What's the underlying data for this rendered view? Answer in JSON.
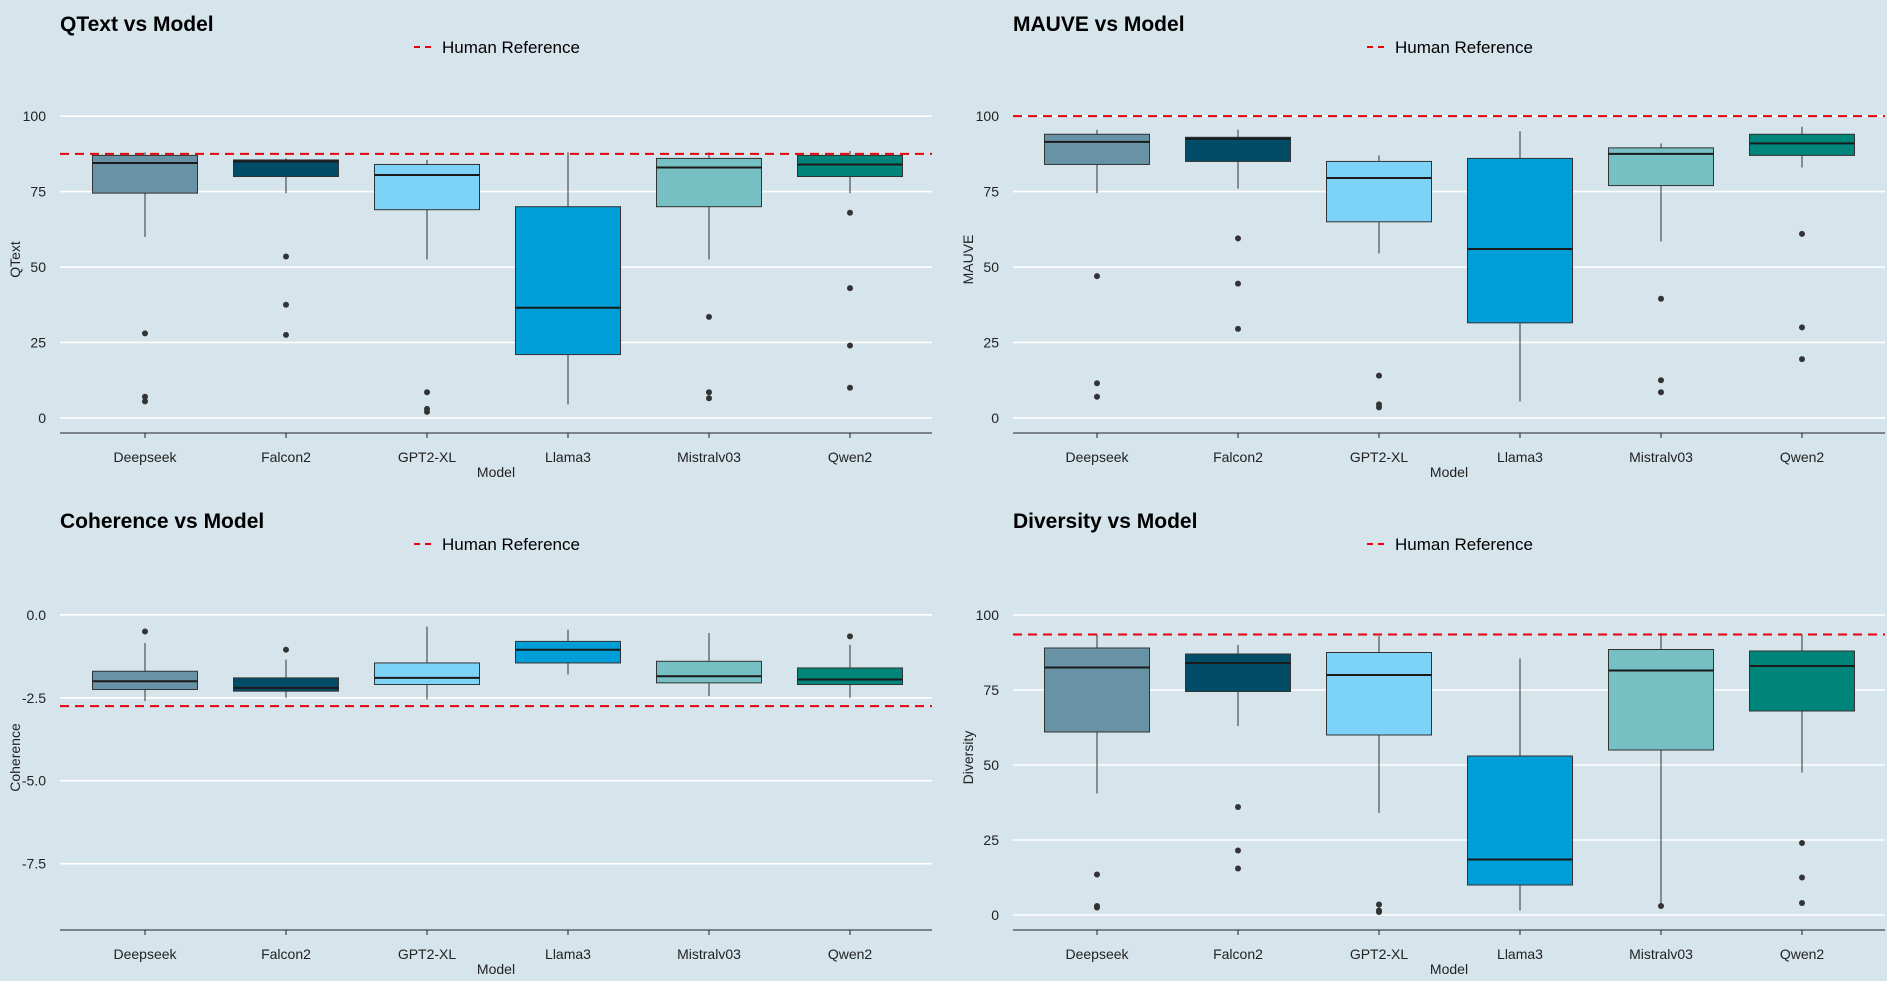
{
  "colors": {
    "background": "#d6e4eb",
    "grid": "#ffffff",
    "axis": "#222222",
    "reference_line": "#e8000b",
    "models": [
      "#6893a6",
      "#014c67",
      "#7dd2f7",
      "#009ed8",
      "#76bfc2",
      "#00857b"
    ]
  },
  "chart_data": [
    {
      "type": "boxplot",
      "title": "QText vs Model",
      "xlabel": "Model",
      "ylabel": "QText",
      "categories": [
        "Deepseek",
        "Falcon2",
        "GPT2-XL",
        "Llama3",
        "Mistralv03",
        "Qwen2"
      ],
      "ylim": [
        -5,
        110
      ],
      "yticks": [
        0,
        25,
        50,
        75,
        100
      ],
      "ytick_labels": [
        "0",
        "25",
        "50",
        "75",
        "100"
      ],
      "legend": {
        "label": "Human Reference",
        "position": "top"
      },
      "reference": 87.5,
      "boxes": [
        {
          "q1": 74.5,
          "median": 84.5,
          "q3": 87,
          "whisker_low": 60,
          "whisker_high": 88,
          "outliers": [
            28,
            7,
            5.5
          ]
        },
        {
          "q1": 80,
          "median": 85,
          "q3": 85.5,
          "whisker_low": 74.5,
          "whisker_high": 86,
          "outliers": [
            53.5,
            37.5,
            27.5
          ]
        },
        {
          "q1": 69,
          "median": 80.5,
          "q3": 84,
          "whisker_low": 52.5,
          "whisker_high": 85.5,
          "outliers": [
            8.5,
            3,
            2
          ]
        },
        {
          "q1": 21,
          "median": 36.5,
          "q3": 70,
          "whisker_low": 4.5,
          "whisker_high": 88,
          "outliers": []
        },
        {
          "q1": 70,
          "median": 83,
          "q3": 86,
          "whisker_low": 52.5,
          "whisker_high": 88,
          "outliers": [
            33.5,
            8.5,
            6.5
          ]
        },
        {
          "q1": 80,
          "median": 84,
          "q3": 87,
          "whisker_low": 74.5,
          "whisker_high": 88.5,
          "outliers": [
            68,
            43,
            24,
            10
          ]
        }
      ]
    },
    {
      "type": "boxplot",
      "title": "MAUVE vs Model",
      "xlabel": "Model",
      "ylabel": "MAUVE",
      "categories": [
        "Deepseek",
        "Falcon2",
        "GPT2-XL",
        "Llama3",
        "Mistralv03",
        "Qwen2"
      ],
      "ylim": [
        -5,
        110
      ],
      "yticks": [
        0,
        25,
        50,
        75,
        100
      ],
      "ytick_labels": [
        "0",
        "25",
        "50",
        "75",
        "100"
      ],
      "legend": {
        "label": "Human Reference",
        "position": "top"
      },
      "reference": 100,
      "boxes": [
        {
          "q1": 84,
          "median": 91.5,
          "q3": 94,
          "whisker_low": 74.5,
          "whisker_high": 95.5,
          "outliers": [
            47,
            11.5,
            7
          ]
        },
        {
          "q1": 85,
          "median": 92.5,
          "q3": 93,
          "whisker_low": 76,
          "whisker_high": 95.5,
          "outliers": [
            59.5,
            44.5,
            29.5
          ]
        },
        {
          "q1": 65,
          "median": 79.5,
          "q3": 85,
          "whisker_low": 54.5,
          "whisker_high": 87,
          "outliers": [
            14,
            4.5,
            3.5
          ]
        },
        {
          "q1": 31.5,
          "median": 56,
          "q3": 86,
          "whisker_low": 5.5,
          "whisker_high": 95,
          "outliers": []
        },
        {
          "q1": 77,
          "median": 87.5,
          "q3": 89.5,
          "whisker_low": 58.5,
          "whisker_high": 91,
          "outliers": [
            39.5,
            12.5,
            8.5
          ]
        },
        {
          "q1": 87,
          "median": 91,
          "q3": 94,
          "whisker_low": 83,
          "whisker_high": 96.5,
          "outliers": [
            61,
            30,
            19.5
          ]
        }
      ]
    },
    {
      "type": "boxplot",
      "title": "Coherence vs Model",
      "xlabel": "Model",
      "ylabel": "Coherence",
      "categories": [
        "Deepseek",
        "Falcon2",
        "GPT2-XL",
        "Llama3",
        "Mistralv03",
        "Qwen2"
      ],
      "ylim": [
        -9.5,
        0.9
      ],
      "yticks": [
        0,
        -2.5,
        -5,
        -7.5
      ],
      "ytick_labels": [
        "0.0",
        "-2.5",
        "-5.0",
        "-7.5"
      ],
      "legend": {
        "label": "Human Reference",
        "position": "top"
      },
      "reference": -2.75,
      "boxes": [
        {
          "q1": -2.25,
          "median": -2.0,
          "q3": -1.7,
          "whisker_low": -2.6,
          "whisker_high": -0.85,
          "outliers": [
            -0.5
          ]
        },
        {
          "q1": -2.3,
          "median": -2.2,
          "q3": -1.9,
          "whisker_low": -2.5,
          "whisker_high": -1.35,
          "outliers": [
            -1.05
          ]
        },
        {
          "q1": -2.1,
          "median": -1.9,
          "q3": -1.45,
          "whisker_low": -2.55,
          "whisker_high": -0.35,
          "outliers": []
        },
        {
          "q1": -1.45,
          "median": -1.05,
          "q3": -0.8,
          "whisker_low": -1.8,
          "whisker_high": -0.45,
          "outliers": []
        },
        {
          "q1": -2.05,
          "median": -1.85,
          "q3": -1.4,
          "whisker_low": -2.45,
          "whisker_high": -0.55,
          "outliers": []
        },
        {
          "q1": -2.1,
          "median": -1.95,
          "q3": -1.6,
          "whisker_low": -2.5,
          "whisker_high": -0.9,
          "outliers": [
            -0.65
          ]
        }
      ]
    },
    {
      "type": "boxplot",
      "title": "Diversity vs Model",
      "xlabel": "Model",
      "ylabel": "Diversity",
      "categories": [
        "Deepseek",
        "Falcon2",
        "GPT2-XL",
        "Llama3",
        "Mistralv03",
        "Qwen2"
      ],
      "ylim": [
        -5,
        110
      ],
      "yticks": [
        0,
        25,
        50,
        75,
        100
      ],
      "ytick_labels": [
        "0",
        "25",
        "50",
        "75",
        "100"
      ],
      "legend": {
        "label": "Human Reference",
        "position": "top"
      },
      "reference": 93.5,
      "boxes": [
        {
          "q1": 61,
          "median": 82.5,
          "q3": 89,
          "whisker_low": 40.5,
          "whisker_high": 93.5,
          "outliers": [
            13.5,
            3,
            2.5
          ]
        },
        {
          "q1": 74.5,
          "median": 84,
          "q3": 87,
          "whisker_low": 63,
          "whisker_high": 90,
          "outliers": [
            36,
            21.5,
            15.5
          ]
        },
        {
          "q1": 60,
          "median": 80,
          "q3": 87.5,
          "whisker_low": 34,
          "whisker_high": 93,
          "outliers": [
            3.5,
            1.5,
            1
          ]
        },
        {
          "q1": 10,
          "median": 18.5,
          "q3": 53,
          "whisker_low": 1.5,
          "whisker_high": 85.5,
          "outliers": []
        },
        {
          "q1": 55,
          "median": 81.5,
          "q3": 88.5,
          "whisker_low": 3,
          "whisker_high": 94,
          "outliers": [
            3
          ]
        },
        {
          "q1": 68,
          "median": 83,
          "q3": 88,
          "whisker_low": 47.5,
          "whisker_high": 93.5,
          "outliers": [
            24,
            12.5,
            4
          ]
        }
      ]
    }
  ]
}
